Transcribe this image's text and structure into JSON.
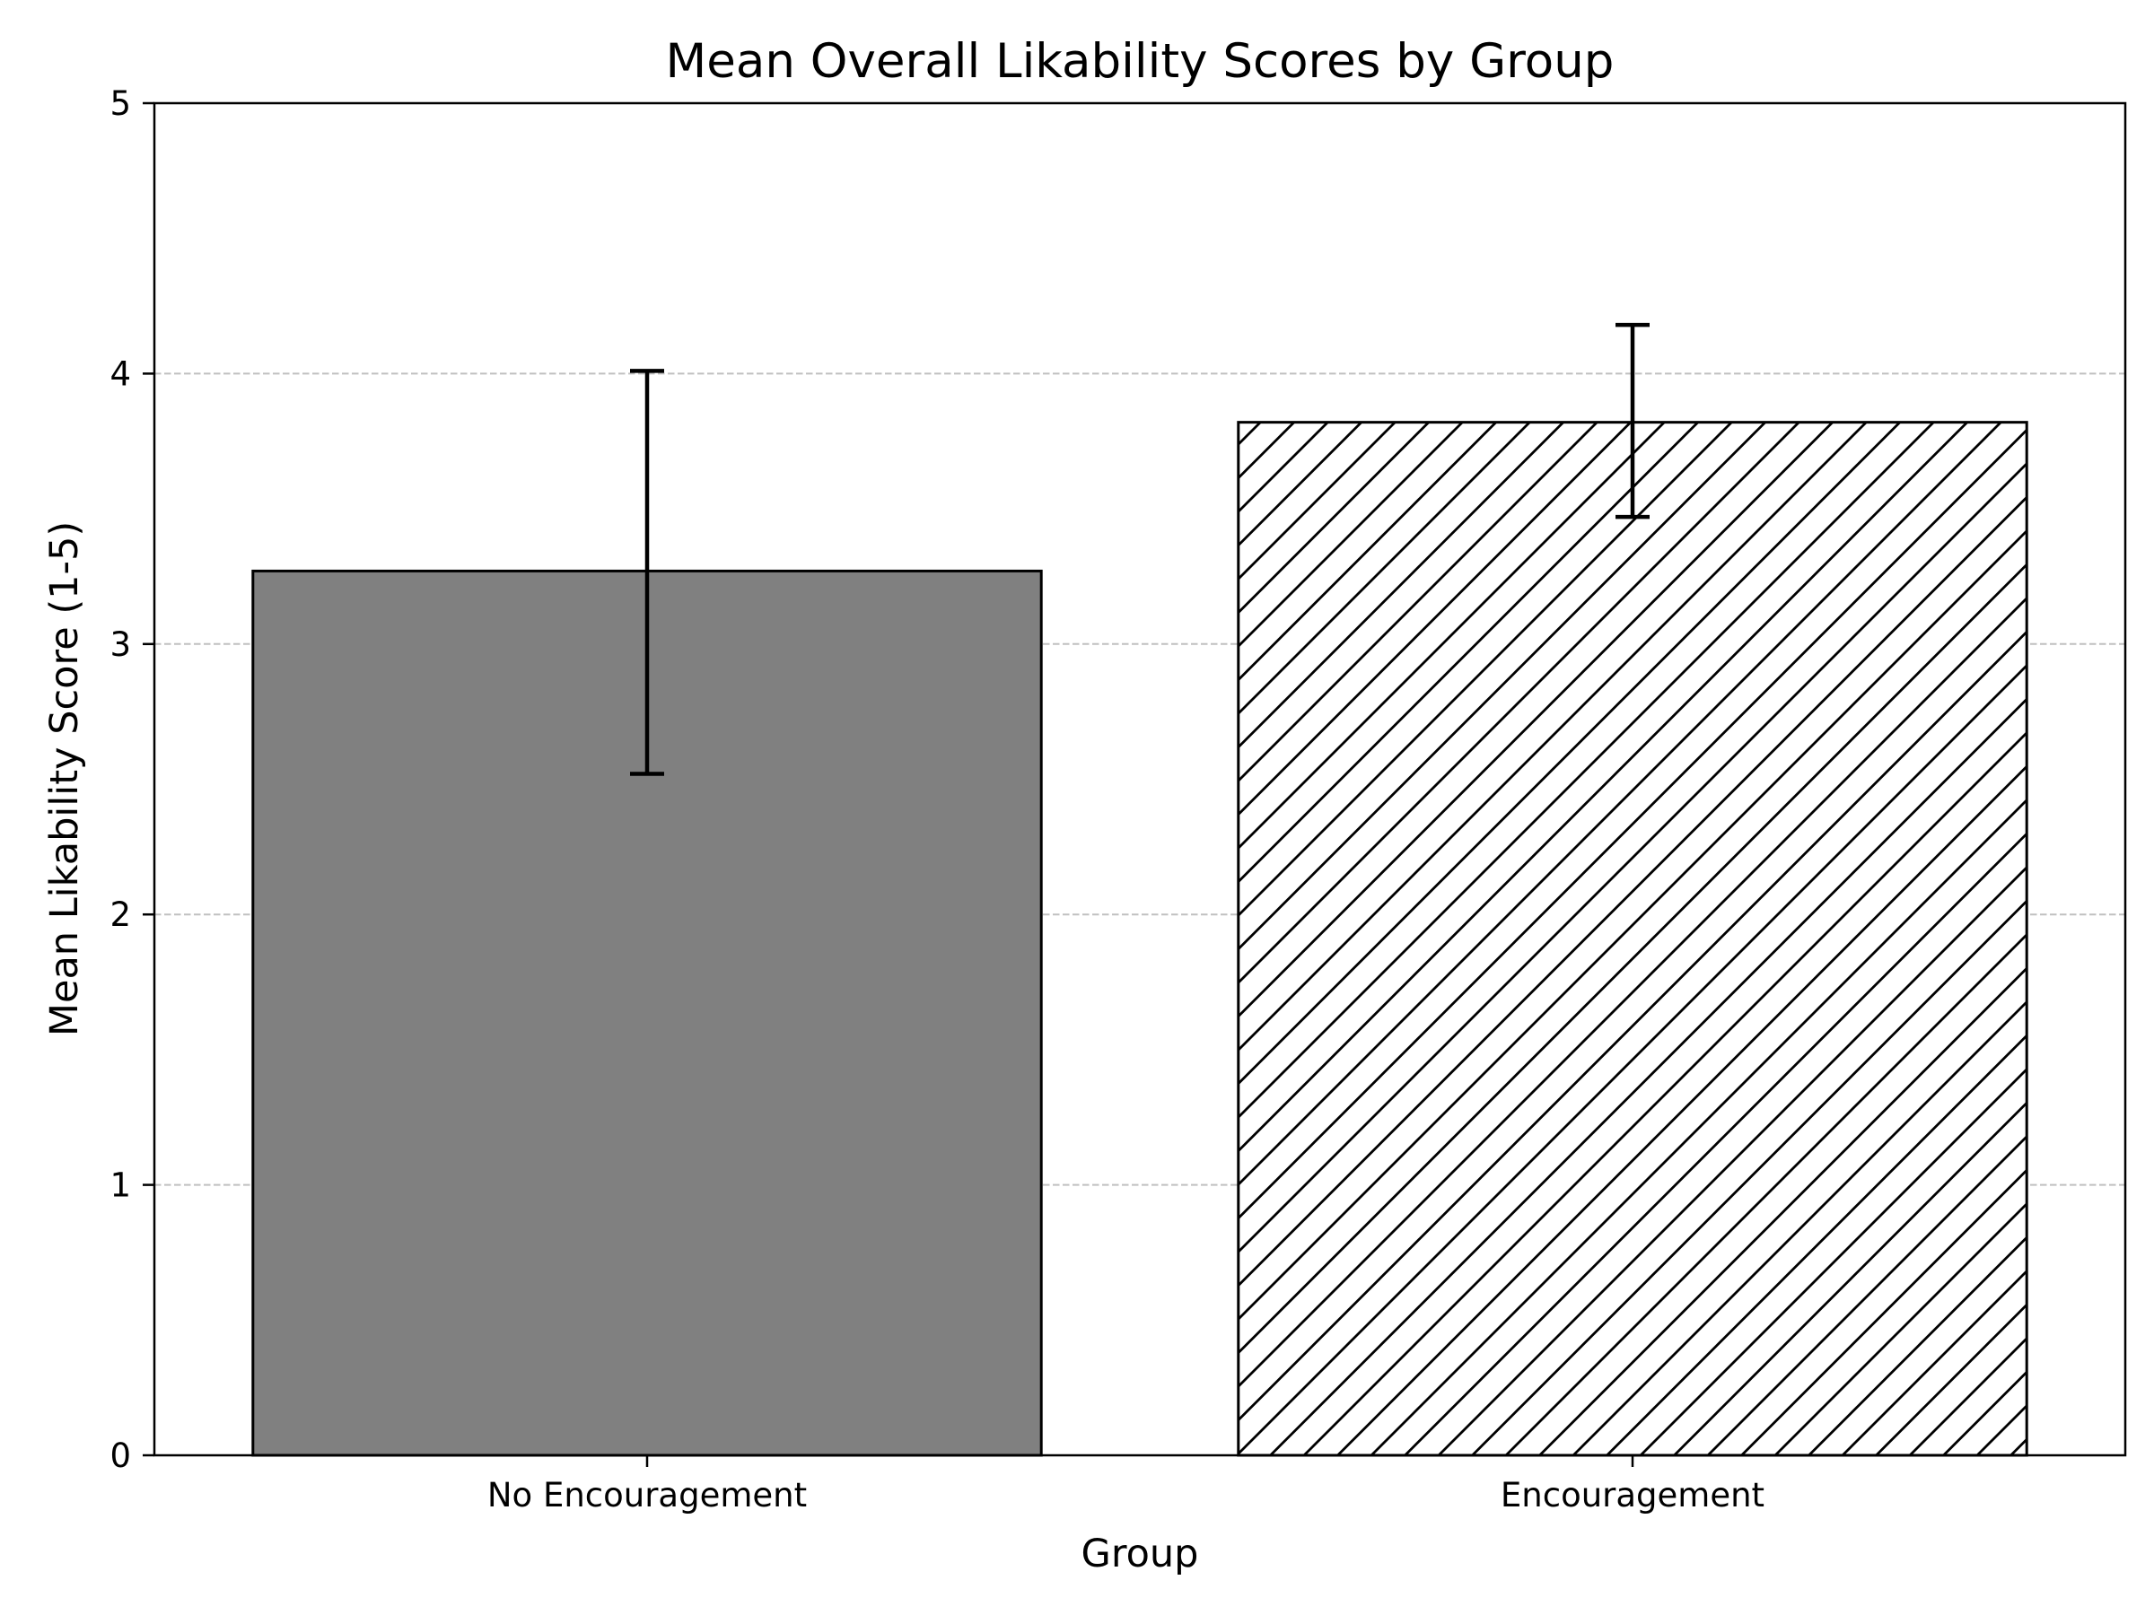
{
  "chart_data": {
    "type": "bar",
    "title": "Mean Overall Likability Scores by Group",
    "xlabel": "Group",
    "ylabel": "Mean Likability Score (1-5)",
    "categories": [
      "No Encouragement",
      "Encouragement"
    ],
    "values": [
      3.27,
      3.82
    ],
    "error_low": [
      2.52,
      3.47
    ],
    "error_high": [
      4.01,
      4.18
    ],
    "ylim": [
      0,
      5
    ],
    "yticks": [
      0,
      1,
      2,
      3,
      4,
      5
    ],
    "ytick_labels": [
      "0",
      "1",
      "2",
      "3",
      "4",
      "5"
    ],
    "grid": "horizontal dashed",
    "bar_styles": [
      {
        "fill": "#808080",
        "pattern": "solid"
      },
      {
        "fill": "#ffffff",
        "pattern": "diagonal-hatch"
      }
    ],
    "colors": {
      "edge": "#000000",
      "grid": "#c0c0c0",
      "background": "#ffffff"
    }
  }
}
